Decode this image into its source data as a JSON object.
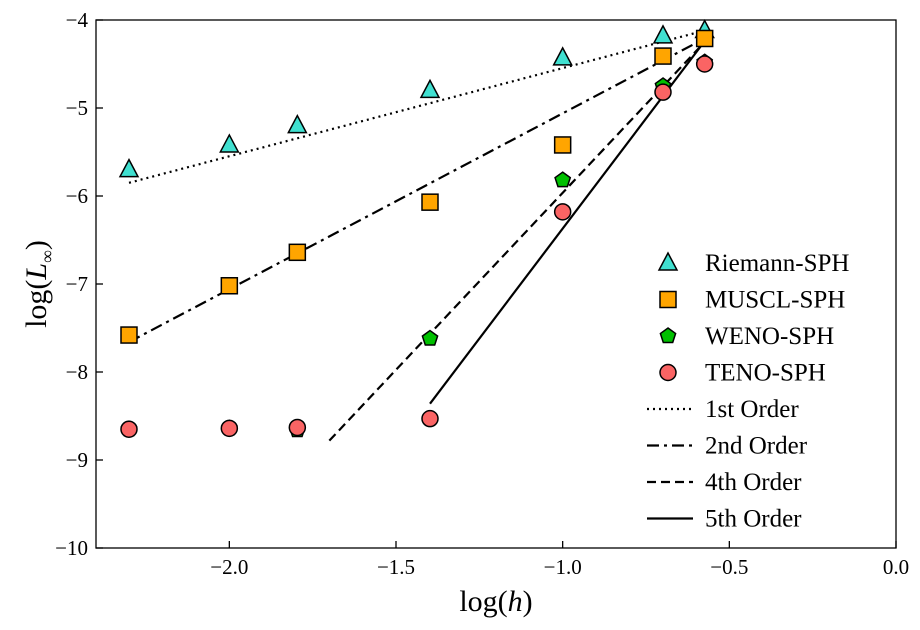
{
  "chart_data": {
    "type": "scatter",
    "title": "",
    "xlabel": "log(h)",
    "ylabel": "log(L∞)",
    "xlim": [
      -2.4,
      0.0
    ],
    "ylim": [
      -10,
      -4
    ],
    "xticks": [
      -2.0,
      -1.5,
      -1.0,
      -0.5,
      0.0
    ],
    "xtick_labels": [
      "−2.0",
      "−1.5",
      "−1.0",
      "−0.5",
      "0.0"
    ],
    "yticks": [
      -10,
      -9,
      -8,
      -7,
      -6,
      -5,
      -4
    ],
    "ytick_labels": [
      "−10",
      "−9",
      "−8",
      "−7",
      "−6",
      "−5",
      "−4"
    ],
    "grid": false,
    "legend_position": "right",
    "series": [
      {
        "name": "Riemann-SPH",
        "marker": "triangle",
        "color": "#40E0D0",
        "x": [
          -2.301,
          -2.0,
          -1.796,
          -1.398,
          -1.0,
          -0.699,
          -0.574
        ],
        "y": [
          -5.7,
          -5.42,
          -5.2,
          -4.8,
          -4.43,
          -4.18,
          -4.12
        ]
      },
      {
        "name": "MUSCL-SPH",
        "marker": "square",
        "color": "#FFA500",
        "x": [
          -2.301,
          -2.0,
          -1.796,
          -1.398,
          -1.0,
          -0.699,
          -0.574
        ],
        "y": [
          -7.58,
          -7.02,
          -6.64,
          -6.07,
          -5.42,
          -4.41,
          -4.21
        ]
      },
      {
        "name": "WENO-SPH",
        "marker": "pentagon",
        "color": "#00C000",
        "x": [
          -2.301,
          -2.0,
          -1.796,
          -1.398,
          -1.0,
          -0.699,
          -0.574
        ],
        "y": [
          -8.65,
          -8.64,
          -8.66,
          -7.62,
          -5.82,
          -4.75,
          -4.48
        ]
      },
      {
        "name": "TENO-SPH",
        "marker": "circle",
        "color": "#FA6464",
        "x": [
          -2.301,
          -2.0,
          -1.796,
          -1.398,
          -1.0,
          -0.699,
          -0.574
        ],
        "y": [
          -8.65,
          -8.64,
          -8.63,
          -8.53,
          -6.18,
          -4.82,
          -4.5
        ]
      }
    ],
    "reference_lines": [
      {
        "name": "1st Order",
        "style": "dotted",
        "x": [
          -2.301,
          -0.574
        ],
        "y": [
          -5.85,
          -4.12
        ]
      },
      {
        "name": "2nd Order",
        "style": "dashdot",
        "x": [
          -2.301,
          -0.574
        ],
        "y": [
          -7.66,
          -4.21
        ]
      },
      {
        "name": "4th Order",
        "style": "dashed",
        "x": [
          -1.7,
          -0.574
        ],
        "y": [
          -8.78,
          -4.25
        ]
      },
      {
        "name": "5th Order",
        "style": "solid",
        "x": [
          -1.398,
          -0.574
        ],
        "y": [
          -8.36,
          -4.24
        ]
      }
    ]
  }
}
